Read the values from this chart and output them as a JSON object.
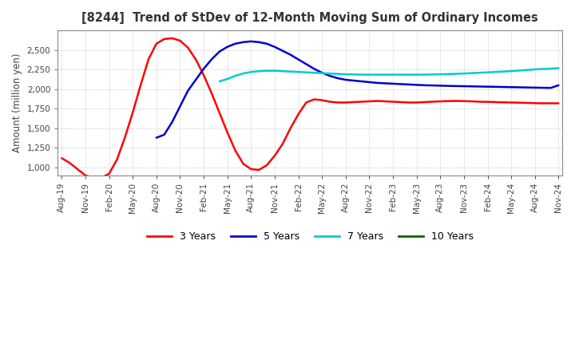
{
  "title": "[8244]  Trend of StDev of 12-Month Moving Sum of Ordinary Incomes",
  "ylabel": "Amount (million yen)",
  "background_color": "#ffffff",
  "grid_color": "#aaaaaa",
  "ylim": [
    900,
    2750
  ],
  "yticks": [
    1000,
    1250,
    1500,
    1750,
    2000,
    2250,
    2500
  ],
  "x_labels": [
    "Aug-19",
    "Nov-19",
    "Feb-20",
    "May-20",
    "Aug-20",
    "Nov-20",
    "Feb-21",
    "May-21",
    "Aug-21",
    "Nov-21",
    "Feb-22",
    "May-22",
    "Aug-22",
    "Nov-22",
    "Feb-23",
    "May-23",
    "Aug-23",
    "Nov-23",
    "Feb-24",
    "May-24",
    "Aug-24",
    "Nov-24"
  ],
  "lines": {
    "3 Years": {
      "color": "#ff0000",
      "data": [
        1120,
        1060,
        980,
        900,
        870,
        870,
        920,
        1100,
        1380,
        1700,
        2050,
        2380,
        2580,
        2640,
        2650,
        2620,
        2530,
        2380,
        2180,
        1950,
        1700,
        1450,
        1220,
        1050,
        980,
        970,
        1030,
        1150,
        1300,
        1500,
        1680,
        1830,
        1870,
        1860,
        1840,
        1830,
        1830,
        1835,
        1840,
        1845,
        1850,
        1845,
        1840,
        1835,
        1830,
        1830,
        1835,
        1840,
        1845,
        1848,
        1850,
        1848,
        1845,
        1840,
        1838,
        1835,
        1832,
        1830,
        1828,
        1825,
        1822,
        1820,
        1820,
        1820
      ]
    },
    "5 Years": {
      "color": "#0000cc",
      "data": [
        null,
        null,
        null,
        null,
        null,
        null,
        null,
        null,
        null,
        null,
        null,
        null,
        1380,
        1420,
        1580,
        1780,
        1980,
        2120,
        2260,
        2380,
        2480,
        2540,
        2580,
        2600,
        2610,
        2600,
        2580,
        2540,
        2490,
        2440,
        2380,
        2320,
        2260,
        2210,
        2170,
        2140,
        2120,
        2110,
        2100,
        2090,
        2080,
        2075,
        2070,
        2065,
        2060,
        2055,
        2050,
        2048,
        2045,
        2042,
        2040,
        2038,
        2036,
        2034,
        2032,
        2030,
        2028,
        2026,
        2024,
        2022,
        2020,
        2018,
        2016,
        2050
      ]
    },
    "7 Years": {
      "color": "#00cccc",
      "data": [
        null,
        null,
        null,
        null,
        null,
        null,
        null,
        null,
        null,
        null,
        null,
        null,
        null,
        null,
        null,
        null,
        null,
        null,
        null,
        null,
        2100,
        2130,
        2170,
        2200,
        2220,
        2230,
        2235,
        2235,
        2230,
        2225,
        2220,
        2215,
        2210,
        2205,
        2200,
        2195,
        2190,
        2188,
        2186,
        2185,
        2185,
        2185,
        2185,
        2185,
        2185,
        2185,
        2186,
        2188,
        2190,
        2193,
        2196,
        2200,
        2205,
        2210,
        2215,
        2220,
        2225,
        2230,
        2238,
        2245,
        2252,
        2258,
        2262,
        2268
      ]
    },
    "10 Years": {
      "color": "#006600",
      "data": [
        null,
        null,
        null,
        null,
        null,
        null,
        null,
        null,
        null,
        null,
        null,
        null,
        null,
        null,
        null,
        null,
        null,
        null,
        null,
        null,
        null,
        null,
        null,
        null,
        null,
        null,
        null,
        null,
        null,
        null,
        null,
        null,
        null,
        null,
        null,
        null,
        null,
        null,
        null,
        null,
        null,
        null,
        null,
        null,
        null,
        null,
        null,
        null,
        null,
        null,
        null,
        null,
        null,
        null,
        null,
        null,
        null,
        null,
        null,
        null,
        null,
        null,
        null,
        null
      ]
    }
  },
  "legend_labels": [
    "3 Years",
    "5 Years",
    "7 Years",
    "10 Years"
  ],
  "legend_colors": [
    "#ff0000",
    "#0000cc",
    "#00cccc",
    "#006600"
  ]
}
